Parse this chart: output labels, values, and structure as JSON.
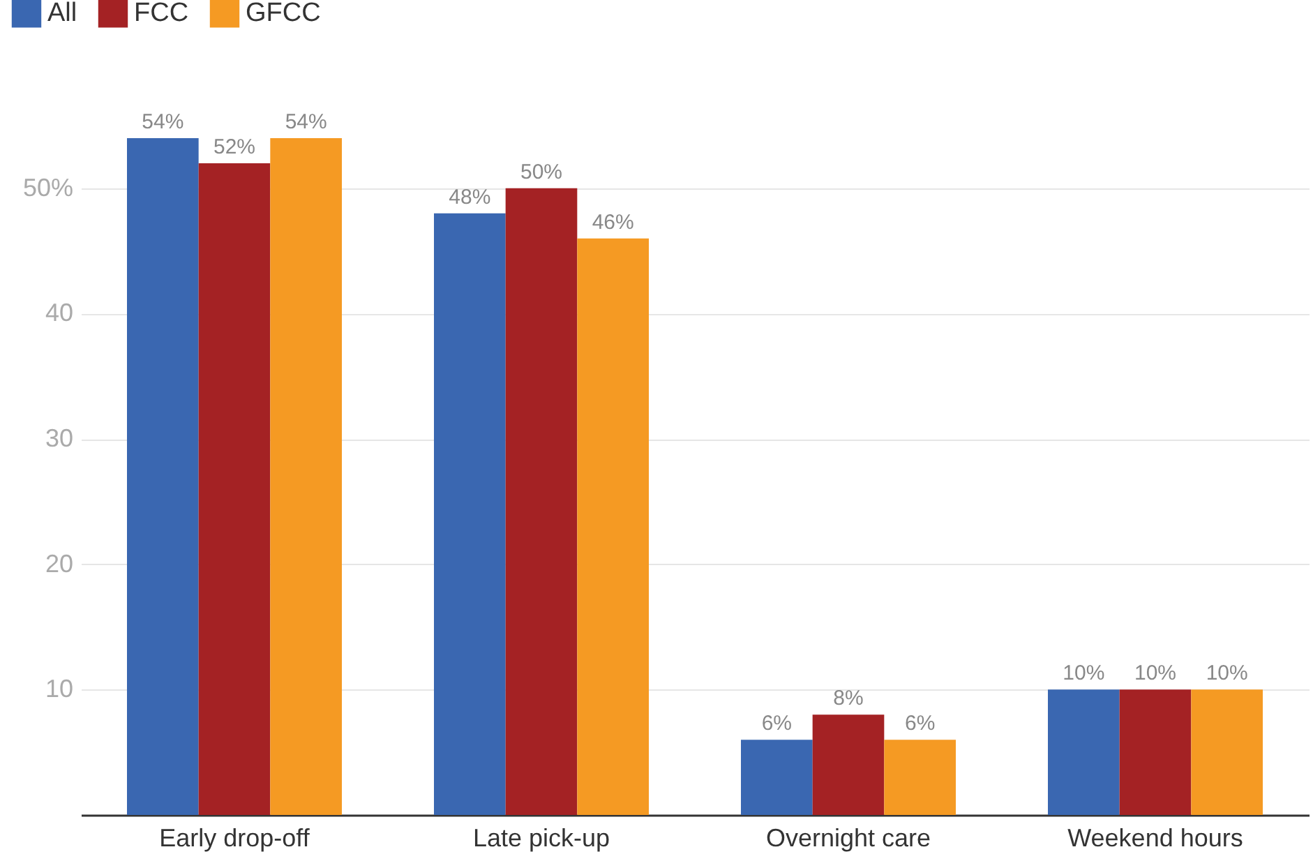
{
  "chart_data": {
    "type": "bar",
    "categories": [
      "Early drop-off",
      "Late pick-up",
      "Overnight care",
      "Weekend hours"
    ],
    "series": [
      {
        "name": "All",
        "color": "#3a67b1",
        "values": [
          54,
          48,
          6,
          10
        ],
        "value_labels": [
          "54%",
          "48%",
          "6%",
          "10%"
        ]
      },
      {
        "name": "FCC",
        "color": "#a42224",
        "values": [
          52,
          50,
          8,
          10
        ],
        "value_labels": [
          "52%",
          "50%",
          "8%",
          "10%"
        ]
      },
      {
        "name": "GFCC",
        "color": "#f59a23",
        "values": [
          54,
          46,
          6,
          10
        ],
        "value_labels": [
          "54%",
          "46%",
          "6%",
          "10%"
        ]
      }
    ],
    "ylim": [
      0,
      54
    ],
    "yticks": [
      10,
      20,
      30,
      40,
      {
        "value": 50,
        "label": "50%"
      }
    ],
    "grid": "y",
    "legend": "top left"
  }
}
